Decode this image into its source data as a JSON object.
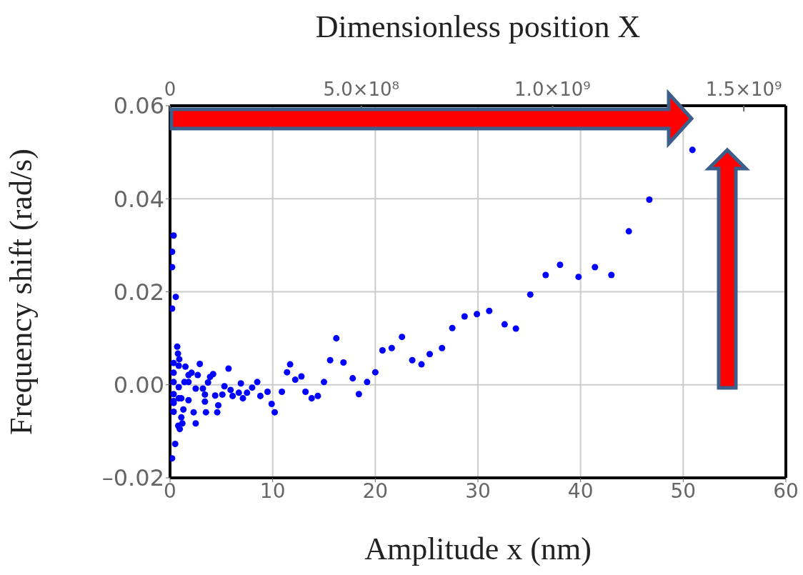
{
  "chart_data": {
    "type": "scatter",
    "xlabel": "Amplitude x (nm)",
    "ylabel": "Frequency shift (rad/s)",
    "x2label": "Dimensionless position X",
    "xlim": [
      0,
      60
    ],
    "xticks": [
      0,
      10,
      20,
      30,
      40,
      50,
      60
    ],
    "x2lim": [
      0,
      1610000000
    ],
    "x2ticks": [
      {
        "value": 0,
        "label": "0"
      },
      {
        "value": 500000000,
        "label": "5.0×10⁸"
      },
      {
        "value": 1000000000,
        "label": "1.0×10⁹"
      },
      {
        "value": 1500000000,
        "label": "1.5×10⁹"
      }
    ],
    "ylim": [
      -0.02,
      0.06
    ],
    "yticks": [
      {
        "value": -0.02,
        "label": "–0.02"
      },
      {
        "value": 0,
        "label": "0.00"
      },
      {
        "value": 0.02,
        "label": "0.02"
      },
      {
        "value": 0.04,
        "label": "0.04"
      },
      {
        "value": 0.06,
        "label": "0.06"
      }
    ],
    "grid": true,
    "marker": "circle",
    "color": "#0000ff",
    "x": [
      50.9,
      46.7,
      44.7,
      43.0,
      41.4,
      39.8,
      38.0,
      36.6,
      35.1,
      33.7,
      32.6,
      31.1,
      29.9,
      28.7,
      27.5,
      26.5,
      25.3,
      24.5,
      23.6,
      22.6,
      21.6,
      20.7,
      20.0,
      19.2,
      18.4,
      17.8,
      16.9,
      16.2,
      15.6,
      15.0,
      14.4,
      13.8,
      13.2,
      12.8,
      12.2,
      11.7,
      11.4,
      0.35,
      0.2,
      0.2,
      0.56,
      0.2,
      0.7,
      0.77,
      0.9,
      1.5,
      2.9,
      2.1,
      2.7,
      4.2,
      3.9,
      5.7,
      0.35,
      0.35,
      1.8,
      3.7,
      2.5,
      3.2,
      5.3,
      5.9,
      6.9,
      8.5,
      8.0,
      7.5,
      6.7,
      6.1,
      7.1,
      5.1,
      4.4,
      3.4,
      1.8,
      1.1,
      0.35,
      0.35,
      3.4,
      4.7,
      8.8,
      9.5,
      10.9,
      9.9,
      10.2,
      1.3,
      0.35,
      2.3,
      3.5,
      4.6,
      1.1,
      2.5,
      1.2,
      0.8,
      0.95,
      0.5,
      0.2,
      0.35,
      0.85,
      1.8,
      1.4,
      0.85,
      0.85,
      0.35
    ],
    "values": [
      0.0505,
      0.0398,
      0.033,
      0.0236,
      0.0253,
      0.0232,
      0.0258,
      0.0236,
      0.0194,
      0.0121,
      0.013,
      0.0159,
      0.0152,
      0.0147,
      0.0122,
      0.0079,
      0.0066,
      0.0044,
      0.0053,
      0.0103,
      0.0079,
      0.0074,
      0.0027,
      0.0006,
      -0.002,
      0.0014,
      0.0048,
      0.01,
      0.0053,
      0.0006,
      -0.0024,
      -0.0029,
      -0.0015,
      0.0018,
      0.0011,
      0.0044,
      0.0027,
      0.0321,
      0.0286,
      0.0253,
      0.0189,
      0.0164,
      0.0082,
      0.0067,
      0.0055,
      0.0039,
      0.0045,
      0.0026,
      0.0021,
      0.0023,
      0.0017,
      0.0035,
      0.0026,
      0.0006,
      0.0006,
      0.0005,
      -0.0008,
      -0.0008,
      -0.0003,
      -0.0011,
      0.0003,
      0.0006,
      -0.0006,
      -0.0017,
      -0.0017,
      -0.0024,
      -0.0029,
      -0.0021,
      -0.0023,
      -0.0021,
      -0.0033,
      -0.0029,
      -0.002,
      -0.0035,
      -0.0036,
      -0.0044,
      -0.0024,
      -0.0015,
      -0.0015,
      -0.0041,
      -0.0059,
      -0.0053,
      -0.0058,
      -0.0059,
      -0.0059,
      -0.0059,
      -0.007,
      -0.0083,
      -0.0083,
      -0.0088,
      -0.0095,
      -0.0127,
      -0.0158,
      0.0047,
      0.0041,
      0.0021,
      0.0006,
      -0.0005,
      -0.0029,
      -0.0039
    ]
  }
}
